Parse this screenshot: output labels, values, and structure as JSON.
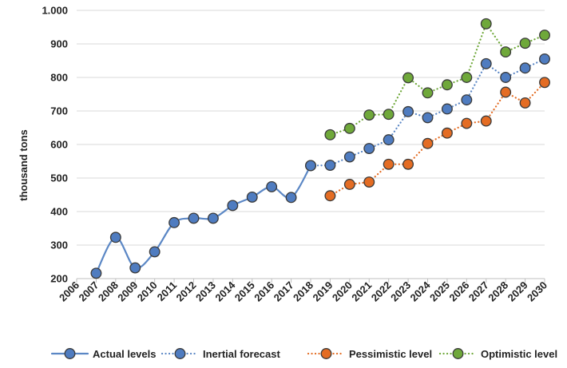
{
  "chart_data": {
    "type": "line",
    "title": "",
    "xlabel": "",
    "ylabel": "thousand tons",
    "ylim": [
      200,
      1000
    ],
    "yticks": [
      200,
      300,
      400,
      500,
      600,
      700,
      800,
      900,
      1000
    ],
    "ytick_labels": [
      "200",
      "300",
      "400",
      "500",
      "600",
      "700",
      "800",
      "900",
      "1.000"
    ],
    "categories": [
      "2006",
      "2007",
      "2008",
      "2009",
      "2010",
      "2011",
      "2012",
      "2013",
      "2014",
      "2015",
      "2016",
      "2017",
      "2018",
      "2019",
      "2020",
      "2021",
      "2022",
      "2023",
      "2024",
      "2025",
      "2026",
      "2027",
      "2028",
      "2029",
      "2030"
    ],
    "grid": "horizontal",
    "legend_position": "bottom",
    "series": [
      {
        "name": "Actual levels",
        "style": "solid",
        "smooth": true,
        "color": "#5b87c5",
        "marker_color": "#4f7cc0",
        "x": [
          "2007",
          "2008",
          "2009",
          "2010",
          "2011",
          "2012",
          "2013",
          "2014",
          "2015",
          "2016",
          "2017",
          "2018"
        ],
        "values": [
          216,
          323,
          232,
          280,
          367,
          380,
          380,
          418,
          443,
          474,
          442,
          537
        ]
      },
      {
        "name": "Inertial forecast",
        "style": "dotted",
        "smooth": false,
        "color": "#5b87c5",
        "marker_color": "#4f7cc0",
        "x": [
          "2018",
          "2019",
          "2020",
          "2021",
          "2022",
          "2023",
          "2024",
          "2025",
          "2026",
          "2027",
          "2028",
          "2029",
          "2030"
        ],
        "values": [
          537,
          538,
          563,
          588,
          614,
          698,
          680,
          706,
          733,
          841,
          800,
          828,
          855
        ]
      },
      {
        "name": "Pessimistic level",
        "style": "dotted",
        "smooth": false,
        "color": "#e46c23",
        "marker_color": "#e46c23",
        "x": [
          "2019",
          "2020",
          "2021",
          "2022",
          "2023",
          "2024",
          "2025",
          "2026",
          "2027",
          "2028",
          "2029",
          "2030"
        ],
        "values": [
          447,
          481,
          488,
          541,
          541,
          603,
          634,
          663,
          670,
          756,
          724,
          785
        ]
      },
      {
        "name": "Optimistic level",
        "style": "dotted",
        "smooth": false,
        "color": "#6fa83a",
        "marker_color": "#6fa83a",
        "x": [
          "2019",
          "2020",
          "2021",
          "2022",
          "2023",
          "2024",
          "2025",
          "2026",
          "2027",
          "2028",
          "2029",
          "2030"
        ],
        "values": [
          629,
          648,
          688,
          690,
          799,
          754,
          778,
          800,
          960,
          876,
          902,
          926
        ]
      }
    ]
  }
}
